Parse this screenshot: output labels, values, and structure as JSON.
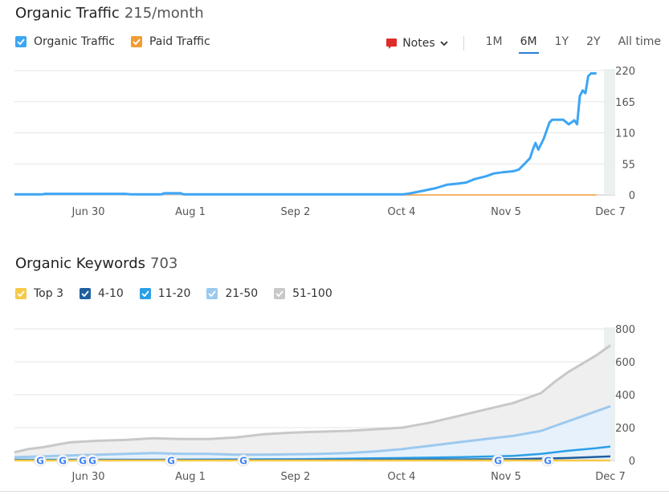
{
  "traffic": {
    "title": "Organic Traffic",
    "value": "215/month",
    "legend": [
      {
        "label": "Organic Traffic",
        "color": "#3da5f4"
      },
      {
        "label": "Paid Traffic",
        "color": "#f39c34"
      }
    ],
    "notes_label": "Notes",
    "ranges": [
      "1M",
      "6M",
      "1Y",
      "2Y",
      "All time"
    ],
    "active_range": "6M"
  },
  "keywords": {
    "title": "Organic Keywords",
    "value": "703",
    "legend": [
      {
        "label": "Top 3",
        "color": "#f7c948"
      },
      {
        "label": "4-10",
        "color": "#1f5f9f"
      },
      {
        "label": "11-20",
        "color": "#2a9fe7"
      },
      {
        "label": "21-50",
        "color": "#9cc9ef"
      },
      {
        "label": "51-100",
        "color": "#c8c8c8"
      }
    ]
  },
  "chart_data": [
    {
      "type": "line",
      "x_labels": [
        "Jun 30",
        "Aug 1",
        "Sep 2",
        "Oct 4",
        "Nov 5",
        "Dec 7"
      ],
      "y_ticks": [
        0,
        55,
        110,
        165,
        220
      ],
      "ylim": [
        0,
        220
      ],
      "series": [
        {
          "name": "Organic Traffic",
          "color": "#3da5f4",
          "points": [
            [
              0,
              1
            ],
            [
              10,
              1
            ],
            [
              11,
              2
            ],
            [
              40,
              2
            ],
            [
              42,
              1
            ],
            [
              53,
              1
            ],
            [
              54,
              3
            ],
            [
              60,
              3
            ],
            [
              61,
              1
            ],
            [
              140,
              1
            ],
            [
              143,
              3
            ],
            [
              148,
              8
            ],
            [
              152,
              12
            ],
            [
              156,
              18
            ],
            [
              160,
              20
            ],
            [
              163,
              22
            ],
            [
              166,
              28
            ],
            [
              170,
              33
            ],
            [
              173,
              38
            ],
            [
              176,
              40
            ],
            [
              180,
              42
            ],
            [
              182,
              45
            ],
            [
              184,
              55
            ],
            [
              186,
              65
            ],
            [
              187,
              80
            ],
            [
              188,
              92
            ],
            [
              189,
              80
            ],
            [
              191,
              100
            ],
            [
              193,
              128
            ],
            [
              194,
              133
            ],
            [
              198,
              133
            ],
            [
              200,
              125
            ],
            [
              202,
              132
            ],
            [
              203,
              125
            ],
            [
              204,
              175
            ],
            [
              205,
              185
            ],
            [
              206,
              180
            ],
            [
              207,
              210
            ],
            [
              208,
              215
            ],
            [
              210,
              215
            ]
          ]
        },
        {
          "name": "Paid Traffic",
          "color": "#f39c34",
          "points": [
            [
              140,
              0
            ],
            [
              210,
              0
            ]
          ]
        }
      ],
      "grid": true
    },
    {
      "type": "area",
      "x_labels": [
        "Jun 30",
        "Aug 1",
        "Sep 2",
        "Oct 4",
        "Nov 5",
        "Dec 7"
      ],
      "y_ticks": [
        0,
        200,
        400,
        600,
        800
      ],
      "ylim": [
        0,
        800
      ],
      "series": [
        {
          "name": "51-100",
          "color": "#c8c8c8",
          "points": [
            [
              0,
              50
            ],
            [
              5,
              70
            ],
            [
              10,
              80
            ],
            [
              20,
              110
            ],
            [
              30,
              120
            ],
            [
              40,
              125
            ],
            [
              50,
              135
            ],
            [
              60,
              130
            ],
            [
              70,
              130
            ],
            [
              80,
              140
            ],
            [
              90,
              160
            ],
            [
              100,
              170
            ],
            [
              110,
              175
            ],
            [
              120,
              180
            ],
            [
              130,
              190
            ],
            [
              140,
              200
            ],
            [
              150,
              230
            ],
            [
              160,
              270
            ],
            [
              170,
              310
            ],
            [
              180,
              350
            ],
            [
              190,
              410
            ],
            [
              195,
              480
            ],
            [
              200,
              540
            ],
            [
              205,
              590
            ],
            [
              210,
              640
            ],
            [
              215,
              700
            ]
          ]
        },
        {
          "name": "21-50",
          "color": "#9cc9ef",
          "points": [
            [
              0,
              20
            ],
            [
              10,
              25
            ],
            [
              20,
              30
            ],
            [
              30,
              35
            ],
            [
              40,
              40
            ],
            [
              50,
              45
            ],
            [
              60,
              40
            ],
            [
              70,
              40
            ],
            [
              80,
              35
            ],
            [
              90,
              35
            ],
            [
              100,
              38
            ],
            [
              110,
              40
            ],
            [
              120,
              45
            ],
            [
              130,
              55
            ],
            [
              140,
              70
            ],
            [
              150,
              90
            ],
            [
              160,
              110
            ],
            [
              170,
              130
            ],
            [
              180,
              150
            ],
            [
              190,
              180
            ],
            [
              195,
              210
            ],
            [
              200,
              240
            ],
            [
              205,
              270
            ],
            [
              210,
              300
            ],
            [
              215,
              330
            ]
          ]
        },
        {
          "name": "11-20",
          "color": "#2a9fe7",
          "points": [
            [
              0,
              5
            ],
            [
              50,
              5
            ],
            [
              100,
              8
            ],
            [
              140,
              15
            ],
            [
              160,
              20
            ],
            [
              180,
              28
            ],
            [
              190,
              40
            ],
            [
              200,
              60
            ],
            [
              210,
              75
            ],
            [
              215,
              85
            ]
          ]
        },
        {
          "name": "4-10",
          "color": "#1f5f9f",
          "points": [
            [
              0,
              2
            ],
            [
              100,
              3
            ],
            [
              140,
              5
            ],
            [
              180,
              8
            ],
            [
              200,
              15
            ],
            [
              215,
              25
            ]
          ]
        },
        {
          "name": "Top 3",
          "color": "#f7c948",
          "points": [
            [
              0,
              0
            ],
            [
              215,
              0
            ]
          ]
        }
      ],
      "annotations": [
        "G",
        "G",
        "G",
        "G",
        "G",
        "G",
        "G",
        "G"
      ],
      "grid": true
    }
  ]
}
